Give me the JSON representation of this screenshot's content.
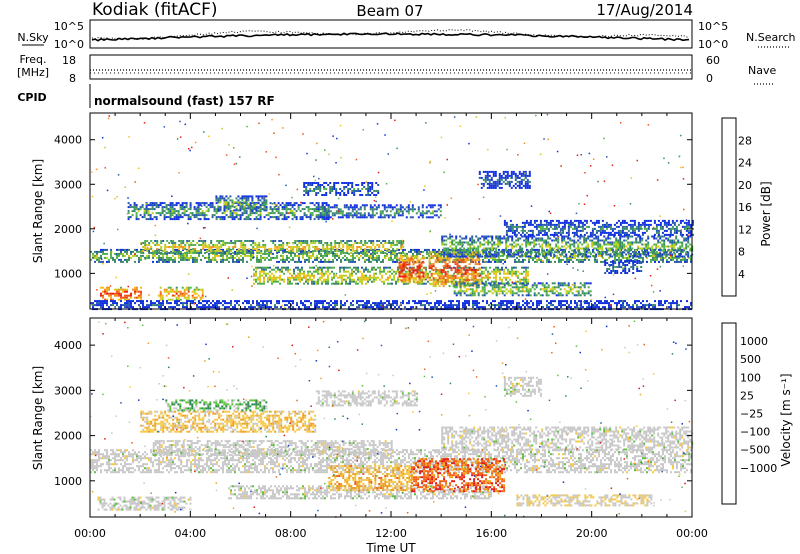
{
  "header": {
    "station": "Kodiak (fitACF)",
    "beam": "Beam 07",
    "date": "17/Aug/2014"
  },
  "top_panels": {
    "nsky_label": "N.Sky",
    "nsearch_label": "N.Search",
    "noise_ticks": [
      "10^5",
      "10^0"
    ],
    "freq_label_1": "Freq.",
    "freq_label_2": "[MHz]",
    "freq_ticks": [
      "18",
      "8"
    ],
    "nave_label": "Nave",
    "nave_ticks": [
      "60",
      "0"
    ],
    "cpid_label": "CPID",
    "cpid_text": "normalsound (fast) 157 RF"
  },
  "colors": {
    "power": [
      "#1030e0",
      "#2858b0",
      "#3a8a6a",
      "#52b04a",
      "#b8d020",
      "#f4c018",
      "#f49020",
      "#f05018",
      "#e82010"
    ],
    "velocity": [
      "#e01818",
      "#f06018",
      "#f0a020",
      "#f8c840",
      "#c8c8c8",
      "#c8c8c8",
      "#60c040",
      "#2a8a50",
      "#2858b0",
      "#1030d0"
    ]
  },
  "chart_data": [
    {
      "type": "heatmap",
      "name": "power",
      "ylabel": "Slant Range [km]",
      "xlabel": "",
      "xlim": [
        0,
        24
      ],
      "ylim": [
        200,
        4600
      ],
      "yticks": [
        "1000",
        "2000",
        "3000",
        "4000"
      ],
      "colorbar": {
        "label": "Power [dB]",
        "ticks": [
          "4",
          "8",
          "12",
          "16",
          "20",
          "24",
          "28"
        ],
        "range": [
          0,
          32
        ]
      },
      "regions": [
        {
          "t0": 0.0,
          "t1": 24.0,
          "r0": 1250,
          "r1": 1550,
          "level": 0.48
        },
        {
          "t0": 2.0,
          "t1": 12.5,
          "r0": 1450,
          "r1": 1750,
          "level": 0.62
        },
        {
          "t0": 0.4,
          "t1": 2.0,
          "r0": 400,
          "r1": 700,
          "level": 0.92
        },
        {
          "t0": 2.7,
          "t1": 4.5,
          "r0": 400,
          "r1": 700,
          "level": 0.78
        },
        {
          "t0": 1.5,
          "t1": 9.5,
          "r0": 2200,
          "r1": 2600,
          "level": 0.38
        },
        {
          "t0": 5.0,
          "t1": 7.0,
          "r0": 2400,
          "r1": 2750,
          "level": 0.45
        },
        {
          "t0": 9.0,
          "t1": 14.0,
          "r0": 2250,
          "r1": 2550,
          "level": 0.35
        },
        {
          "t0": 8.5,
          "t1": 11.5,
          "r0": 2750,
          "r1": 3050,
          "level": 0.28
        },
        {
          "t0": 6.5,
          "t1": 17.5,
          "r0": 750,
          "r1": 1150,
          "level": 0.62
        },
        {
          "t0": 12.3,
          "t1": 13.3,
          "r0": 800,
          "r1": 1400,
          "level": 0.96
        },
        {
          "t0": 13.5,
          "t1": 15.5,
          "r0": 700,
          "r1": 1500,
          "level": 0.9
        },
        {
          "t0": 14.5,
          "t1": 20.0,
          "r0": 500,
          "r1": 800,
          "level": 0.52
        },
        {
          "t0": 14.0,
          "t1": 24.0,
          "r0": 1400,
          "r1": 1850,
          "level": 0.46
        },
        {
          "t0": 16.5,
          "t1": 24.0,
          "r0": 1850,
          "r1": 2200,
          "level": 0.28
        },
        {
          "t0": 15.5,
          "t1": 17.5,
          "r0": 2900,
          "r1": 3300,
          "level": 0.22
        },
        {
          "t0": 20.5,
          "t1": 22.0,
          "r0": 1000,
          "r1": 1300,
          "level": 0.25
        },
        {
          "t0": 0.0,
          "t1": 24.0,
          "r0": 200,
          "r1": 400,
          "level": 0.18
        }
      ]
    },
    {
      "type": "heatmap",
      "name": "velocity",
      "ylabel": "Slant Range [km]",
      "xlabel": "Time UT",
      "xlim": [
        0,
        24
      ],
      "ylim": [
        200,
        4600
      ],
      "xticks": [
        "00:00",
        "04:00",
        "08:00",
        "12:00",
        "16:00",
        "20:00",
        "00:00"
      ],
      "yticks": [
        "1000",
        "2000",
        "3000",
        "4000"
      ],
      "colorbar": {
        "label": "Velocity [m s⁻¹]",
        "ticks": [
          "1000",
          "500",
          "100",
          "25",
          "−25",
          "−100",
          "−500",
          "−1000"
        ]
      },
      "regions": [
        {
          "t0": 0.0,
          "t1": 24.0,
          "r0": 1200,
          "r1": 1700,
          "level": 0.5
        },
        {
          "t0": 2.5,
          "t1": 12.0,
          "r0": 1550,
          "r1": 1900,
          "level": 0.5
        },
        {
          "t0": 5.5,
          "t1": 16.0,
          "r0": 600,
          "r1": 900,
          "level": 0.5
        },
        {
          "t0": 14.0,
          "t1": 24.0,
          "r0": 1700,
          "r1": 2200,
          "level": 0.5
        },
        {
          "t0": 9.5,
          "t1": 12.8,
          "r0": 800,
          "r1": 1350,
          "level": 0.3
        },
        {
          "t0": 12.8,
          "t1": 16.5,
          "r0": 750,
          "r1": 1500,
          "level": 0.15
        },
        {
          "t0": 2.0,
          "t1": 9.0,
          "r0": 2100,
          "r1": 2550,
          "level": 0.35
        },
        {
          "t0": 3.0,
          "t1": 7.0,
          "r0": 2550,
          "r1": 2800,
          "level": 0.65
        },
        {
          "t0": 9.0,
          "t1": 13.0,
          "r0": 2650,
          "r1": 3000,
          "level": 0.5
        },
        {
          "t0": 16.5,
          "t1": 18.0,
          "r0": 2900,
          "r1": 3300,
          "level": 0.5
        },
        {
          "t0": 0.3,
          "t1": 4.0,
          "r0": 350,
          "r1": 650,
          "level": 0.5
        },
        {
          "t0": 17.0,
          "t1": 22.5,
          "r0": 450,
          "r1": 700,
          "level": 0.42
        }
      ]
    }
  ]
}
